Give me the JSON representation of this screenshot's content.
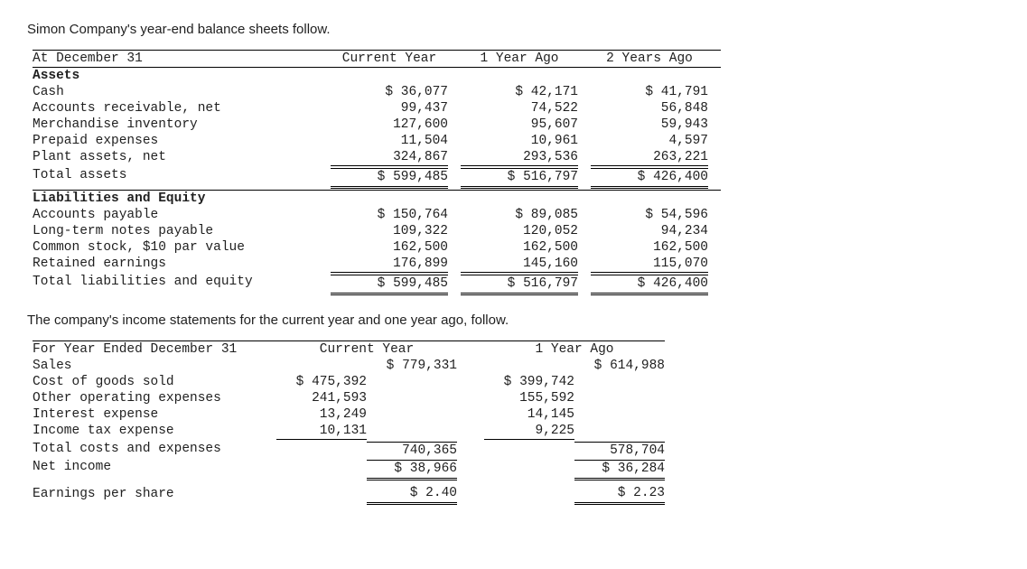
{
  "intro1": "Simon Company's year-end balance sheets follow.",
  "intro2": "The company's income statements for the current year and one year ago, follow.",
  "bs": {
    "date_label": "At December 31",
    "col1": "Current Year",
    "col2": "1 Year Ago",
    "col3": "2 Years Ago",
    "assets_hdr": "Assets",
    "rows_assets": [
      {
        "l": "Cash",
        "c": "$ 36,077",
        "y1": "$ 42,171",
        "y2": "$ 41,791"
      },
      {
        "l": "Accounts receivable, net",
        "c": "99,437",
        "y1": "74,522",
        "y2": "56,848"
      },
      {
        "l": "Merchandise inventory",
        "c": "127,600",
        "y1": "95,607",
        "y2": "59,943"
      },
      {
        "l": "Prepaid expenses",
        "c": "11,504",
        "y1": "10,961",
        "y2": "4,597"
      },
      {
        "l": "Plant assets, net",
        "c": "324,867",
        "y1": "293,536",
        "y2": "263,221"
      }
    ],
    "total_assets": {
      "l": "Total assets",
      "c": "$ 599,485",
      "y1": "$ 516,797",
      "y2": "$ 426,400"
    },
    "liab_hdr": "Liabilities and Equity",
    "rows_liab": [
      {
        "l": "Accounts payable",
        "c": "$ 150,764",
        "y1": "$ 89,085",
        "y2": "$ 54,596"
      },
      {
        "l": "Long-term notes payable",
        "c": "109,322",
        "y1": "120,052",
        "y2": "94,234"
      },
      {
        "l": "Common stock, $10 par value",
        "c": "162,500",
        "y1": "162,500",
        "y2": "162,500"
      },
      {
        "l": "Retained earnings",
        "c": "176,899",
        "y1": "145,160",
        "y2": "115,070"
      }
    ],
    "total_liab": {
      "l": "Total liabilities and equity",
      "c": "$ 599,485",
      "y1": "$ 516,797",
      "y2": "$ 426,400"
    }
  },
  "is": {
    "date_label": "For Year Ended December 31",
    "col1": "Current Year",
    "col2": "1 Year Ago",
    "sales": {
      "l": "Sales",
      "c": "$ 779,331",
      "y1": "$ 614,988"
    },
    "rows": [
      {
        "l": "Cost of goods sold",
        "c": "$ 475,392",
        "y1": "$ 399,742"
      },
      {
        "l": "Other operating expenses",
        "c": "241,593",
        "y1": "155,592"
      },
      {
        "l": "Interest expense",
        "c": "13,249",
        "y1": "14,145"
      },
      {
        "l": "Income tax expense",
        "c": "10,131",
        "y1": "9,225"
      }
    ],
    "total_costs": {
      "l": "Total costs and expenses",
      "c": "740,365",
      "y1": "578,704"
    },
    "net_income": {
      "l": "Net income",
      "c": "$ 38,966",
      "y1": "$ 36,284"
    },
    "eps": {
      "l": "Earnings per share",
      "c": "$ 2.40",
      "y1": "$ 2.23"
    }
  }
}
